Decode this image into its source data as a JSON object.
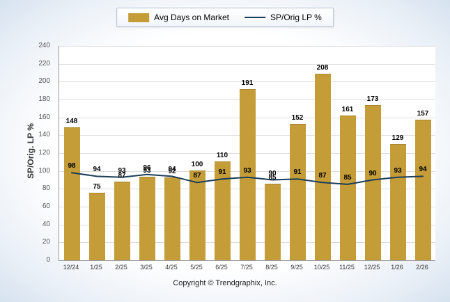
{
  "legend": {
    "bar_label": "Avg Days on Market",
    "line_label": "SP/Orig LP %"
  },
  "y_axis_title": "SP/Orig. LP %",
  "footer": "Copyright © Trendgraphix, Inc.",
  "colors": {
    "bar": "#c49d38",
    "bar_border": "#a8852c",
    "line": "#1b3d59",
    "grid": "#dddddd",
    "axis": "#999999"
  },
  "chart_data": {
    "type": "bar",
    "title": "",
    "xlabel": "",
    "ylabel": "SP/Orig. LP %",
    "ylim": [
      0,
      240
    ],
    "ytick_step": 20,
    "grid": true,
    "legend_position": "top",
    "data_labels": true,
    "categories": [
      "12/24",
      "1/25",
      "2/25",
      "3/25",
      "4/25",
      "5/25",
      "6/25",
      "7/25",
      "8/25",
      "9/25",
      "10/25",
      "11/25",
      "12/25",
      "1/26",
      "2/26"
    ],
    "series": [
      {
        "name": "Avg Days on Market",
        "kind": "bar",
        "values": [
          148,
          75,
          87,
          93,
          92,
          100,
          110,
          191,
          85,
          152,
          208,
          161,
          173,
          129,
          157
        ]
      },
      {
        "name": "SP/Orig LP %",
        "kind": "line",
        "values": [
          98,
          94,
          93,
          96,
          94,
          87,
          91,
          93,
          90,
          91,
          87,
          85,
          90,
          93,
          94
        ]
      }
    ]
  }
}
